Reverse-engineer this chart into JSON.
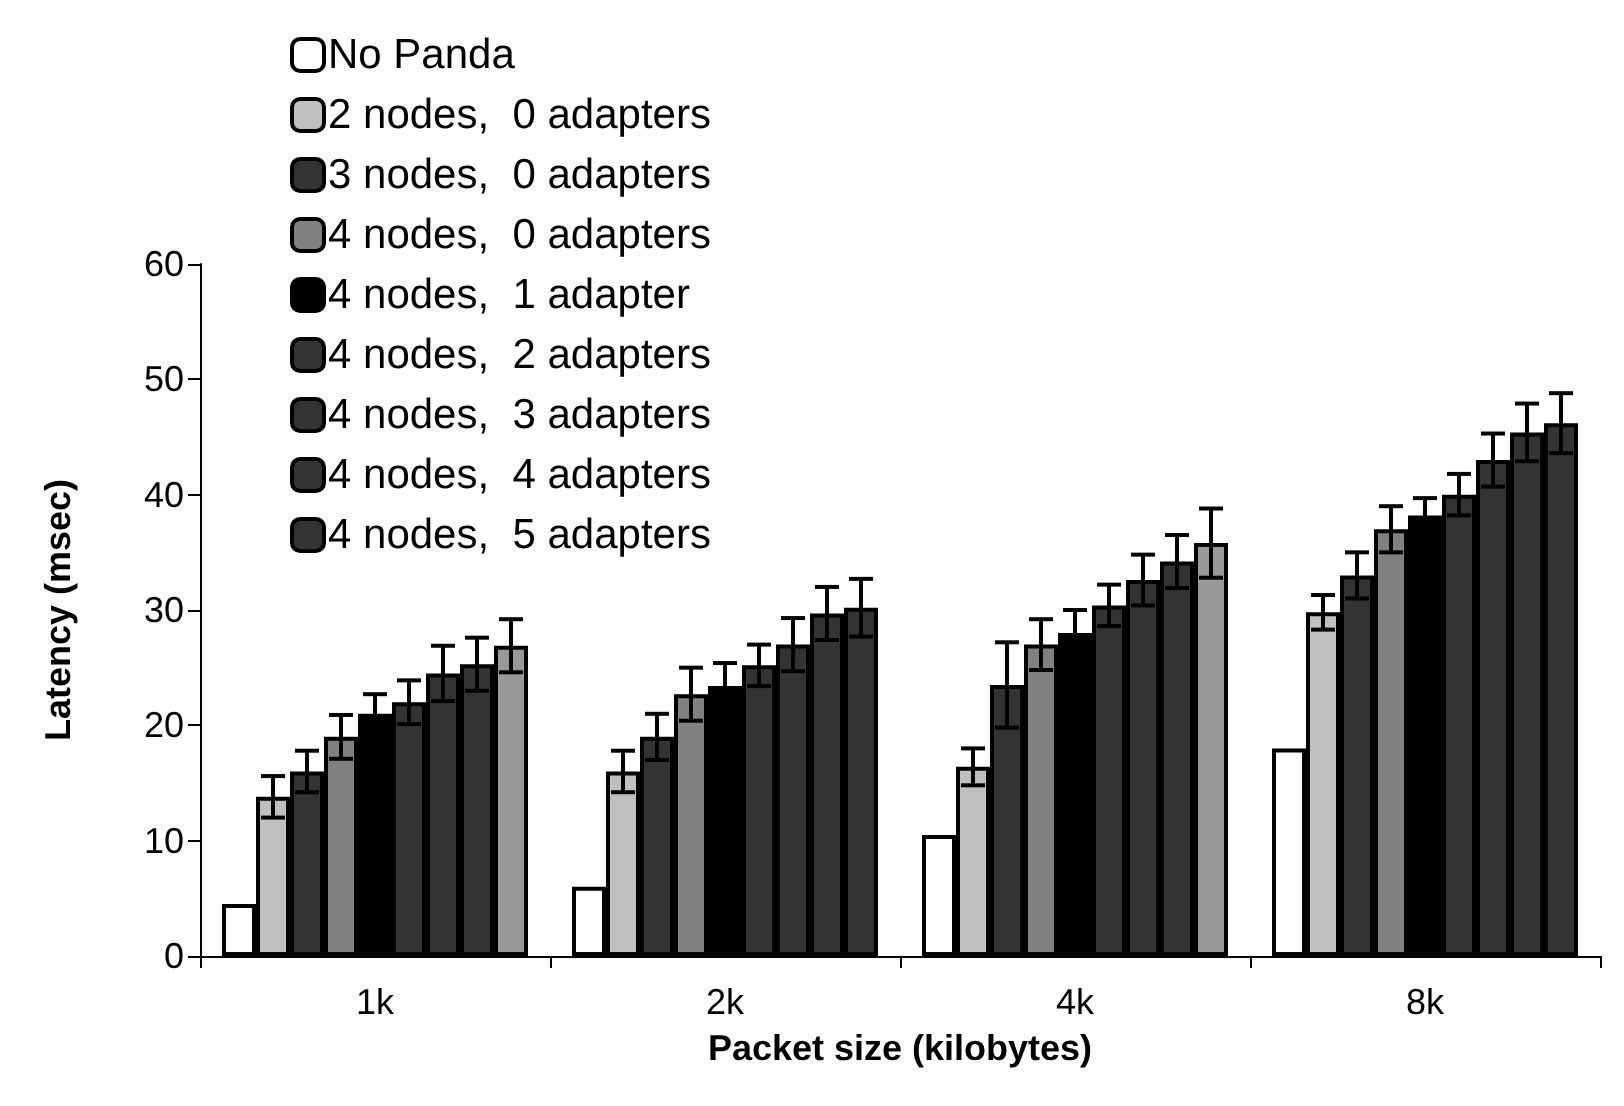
{
  "chart_data": {
    "type": "bar",
    "xlabel": "Packet size (kilobytes)",
    "ylabel": "Latency (msec)",
    "categories": [
      "1k",
      "2k",
      "4k",
      "8k"
    ],
    "ylim": [
      0,
      60
    ],
    "yticks": [
      0,
      10,
      20,
      30,
      40,
      50,
      60
    ],
    "grid": false,
    "legend": "top left",
    "series": [
      {
        "name": "No Panda",
        "color": "#ffffff",
        "values": [
          4.5,
          6,
          10.5,
          18
        ]
      },
      {
        "name": "2 nodes,  0 adapters",
        "color": "#c0c0c0",
        "values": [
          13.8,
          16,
          16.4,
          29.8
        ],
        "errors": [
          1.8,
          1.8,
          1.6,
          1.5
        ]
      },
      {
        "name": "3 nodes,  0 adapters",
        "color": "#333333",
        "values": [
          16,
          19,
          23.5,
          33
        ],
        "errors": [
          1.8,
          2,
          3.7,
          2
        ]
      },
      {
        "name": "4 nodes,  0 adapters",
        "color": "#808080",
        "values": [
          19,
          22.7,
          27,
          37
        ],
        "errors": [
          1.9,
          2.3,
          2.2,
          2
        ]
      },
      {
        "name": "4 nodes,  1 adapter",
        "color": "#000000",
        "values": [
          21,
          23.4,
          28,
          38.2
        ],
        "errors": [
          1.7,
          2,
          2,
          1.5
        ]
      },
      {
        "name": "4 nodes,  2 adapters",
        "color": "#333333",
        "values": [
          22,
          25.2,
          30.4,
          40
        ],
        "errors": [
          1.9,
          1.8,
          1.8,
          1.8
        ]
      },
      {
        "name": "4 nodes,  3 adapters",
        "color": "#333333",
        "values": [
          24.5,
          27,
          32.6,
          43
        ],
        "errors": [
          2.4,
          2.3,
          2.2,
          2.3
        ]
      },
      {
        "name": "4 nodes,  4 adapters",
        "color": "#333333",
        "values": [
          25.3,
          29.7,
          34.2,
          45.4
        ],
        "errors": [
          2.3,
          2.3,
          2.3,
          2.5
        ]
      },
      {
        "name": "4 nodes,  5 adapters",
        "color": "#333333",
        "colors": [
          "#999999",
          "#333333",
          "#999999",
          "#333333"
        ],
        "values": [
          26.9,
          30.2,
          35.8,
          46.2
        ],
        "errors": [
          2.3,
          2.5,
          3,
          2.6
        ]
      }
    ]
  }
}
